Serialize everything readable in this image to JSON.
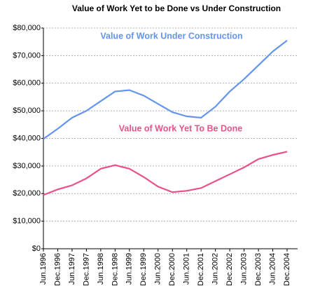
{
  "chart_data": {
    "type": "line",
    "title": "Value of Work Yet to be Done vs Under Construction",
    "categories": [
      "Jun.1996",
      "Dec.1996",
      "Jun.1997",
      "Dec.1997",
      "Jun.1998",
      "Dec.1998",
      "Jun.1999",
      "Dec.1999",
      "Jun.2000",
      "Dec.2000",
      "Jun.2001",
      "Dec.2001",
      "Jun.2002",
      "Dec.2002",
      "Jun.2003",
      "Dec.2003",
      "Jun.2004",
      "Dec.2004"
    ],
    "series": [
      {
        "name": "Value of Work Under Construction",
        "color": "#6495ed",
        "values": [
          39800,
          43500,
          47500,
          50000,
          53500,
          57000,
          57500,
          55500,
          52500,
          49500,
          48000,
          47500,
          51500,
          57000,
          61500,
          66500,
          71500,
          75500
        ]
      },
      {
        "name": "Value of Work Yet To Be Done",
        "color": "#e8518a",
        "values": [
          19500,
          21500,
          23000,
          25500,
          29000,
          30300,
          29000,
          26000,
          22500,
          20500,
          21000,
          22000,
          24500,
          27000,
          29500,
          32500,
          34000,
          35200
        ]
      }
    ],
    "ylim": [
      0,
      80000
    ],
    "yticks": [
      {
        "value": 0,
        "label": "$0"
      },
      {
        "value": 10000,
        "label": "$10,000"
      },
      {
        "value": 20000,
        "label": "$20,000"
      },
      {
        "value": 30000,
        "label": "$30,000"
      },
      {
        "value": 40000,
        "label": "$40,000"
      },
      {
        "value": 50000,
        "label": "$50,000"
      },
      {
        "value": 60000,
        "label": "$60,000"
      },
      {
        "value": 70000,
        "label": "$70,000"
      },
      {
        "value": 80000,
        "label": "$80,000"
      }
    ],
    "grid": true
  }
}
